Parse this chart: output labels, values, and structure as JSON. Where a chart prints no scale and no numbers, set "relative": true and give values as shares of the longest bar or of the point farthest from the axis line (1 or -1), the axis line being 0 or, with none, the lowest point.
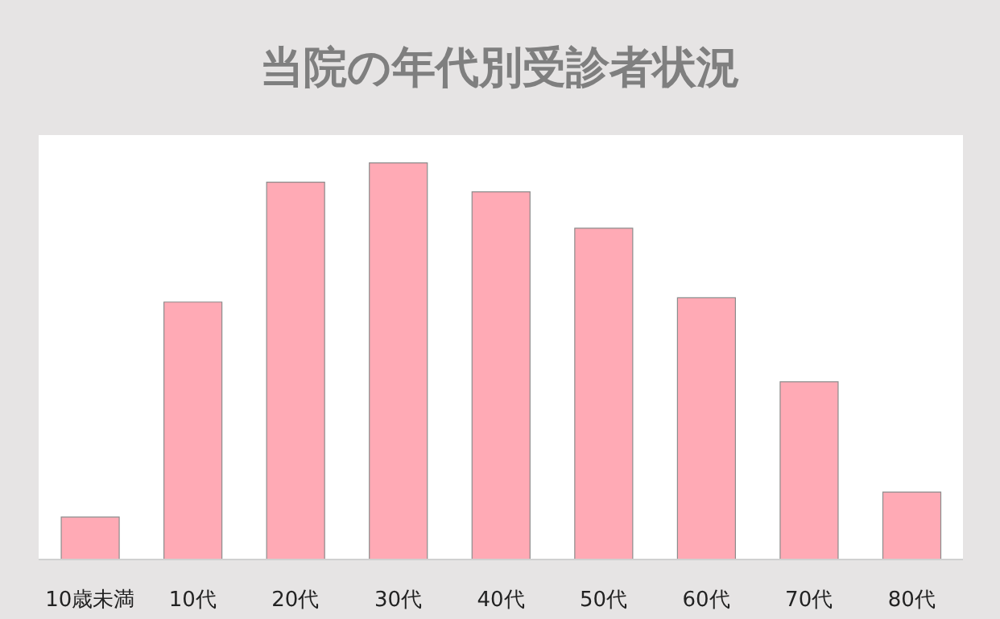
{
  "chart_data": {
    "type": "bar",
    "title": "当院の年代別受診者状況",
    "relative": true,
    "categories": [
      "10歳未満",
      "10代",
      "20代",
      "30代",
      "40代",
      "50代",
      "60代",
      "70代",
      "80代"
    ],
    "values": [
      0.107,
      0.649,
      0.951,
      1,
      0.927,
      0.835,
      0.66,
      0.448,
      0.17
    ],
    "color": "#ffaab5"
  }
}
